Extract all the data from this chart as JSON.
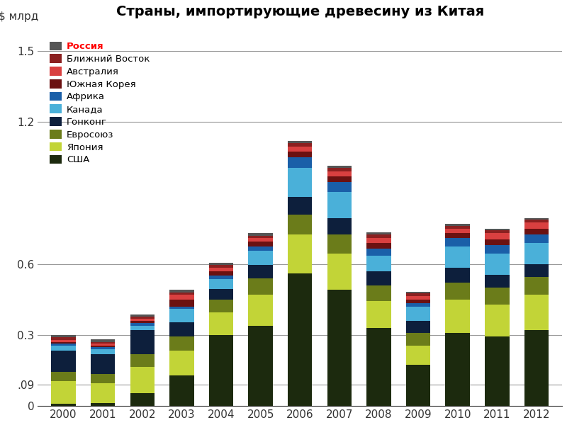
{
  "title": "Страны, импортирующие древесину из Китая",
  "ylabel": "$ млрд",
  "years": [
    2000,
    2001,
    2002,
    2003,
    2004,
    2005,
    2006,
    2007,
    2008,
    2009,
    2010,
    2011,
    2012
  ],
  "series": {
    "США": [
      0.01,
      0.012,
      0.055,
      0.13,
      0.3,
      0.34,
      0.56,
      0.49,
      0.33,
      0.175,
      0.31,
      0.295,
      0.32
    ],
    "Япония": [
      0.095,
      0.085,
      0.11,
      0.105,
      0.095,
      0.13,
      0.165,
      0.155,
      0.115,
      0.08,
      0.14,
      0.135,
      0.15
    ],
    "Евросоюз": [
      0.04,
      0.038,
      0.055,
      0.06,
      0.055,
      0.07,
      0.085,
      0.08,
      0.065,
      0.055,
      0.07,
      0.07,
      0.075
    ],
    "Гонконг": [
      0.09,
      0.085,
      0.1,
      0.06,
      0.045,
      0.055,
      0.075,
      0.07,
      0.06,
      0.05,
      0.065,
      0.055,
      0.055
    ],
    "Канада": [
      0.02,
      0.02,
      0.02,
      0.055,
      0.04,
      0.06,
      0.12,
      0.11,
      0.065,
      0.06,
      0.09,
      0.09,
      0.09
    ],
    "Африка": [
      0.01,
      0.01,
      0.01,
      0.01,
      0.015,
      0.02,
      0.045,
      0.04,
      0.03,
      0.015,
      0.035,
      0.035,
      0.035
    ],
    "Южная Корея": [
      0.005,
      0.005,
      0.01,
      0.03,
      0.02,
      0.02,
      0.025,
      0.025,
      0.025,
      0.015,
      0.02,
      0.025,
      0.025
    ],
    "Австралия": [
      0.01,
      0.008,
      0.01,
      0.02,
      0.015,
      0.015,
      0.02,
      0.02,
      0.02,
      0.015,
      0.02,
      0.025,
      0.025
    ],
    "Ближний Восток": [
      0.01,
      0.008,
      0.008,
      0.01,
      0.01,
      0.01,
      0.015,
      0.015,
      0.015,
      0.01,
      0.012,
      0.012,
      0.012
    ],
    "Россия": [
      0.01,
      0.01,
      0.01,
      0.01,
      0.01,
      0.01,
      0.01,
      0.01,
      0.01,
      0.008,
      0.008,
      0.008,
      0.008
    ]
  },
  "colors": {
    "США": "#1c2a0e",
    "Япония": "#c2d437",
    "Евросоюз": "#6b7c1a",
    "Гонконг": "#0d1f3c",
    "Канада": "#4ab0d9",
    "Африка": "#1a5fa8",
    "Южная Корея": "#6b1111",
    "Австралия": "#d94040",
    "Ближний Восток": "#8b2020",
    "Россия": "#555555"
  },
  "legend_order": [
    "Россия",
    "Ближний Восток",
    "Австралия",
    "Южная Корея",
    "Африка",
    "Канада",
    "Гонконг",
    "Евросоюз",
    "Япония",
    "США"
  ],
  "stack_order": [
    "США",
    "Япония",
    "Евросоюз",
    "Гонконг",
    "Канада",
    "Африка",
    "Южная Корея",
    "Австралия",
    "Ближний Восток",
    "Россия"
  ],
  "ylim": [
    0,
    1.6
  ],
  "background_color": "#ffffff",
  "grid_color": "#999999",
  "bar_width": 0.62
}
